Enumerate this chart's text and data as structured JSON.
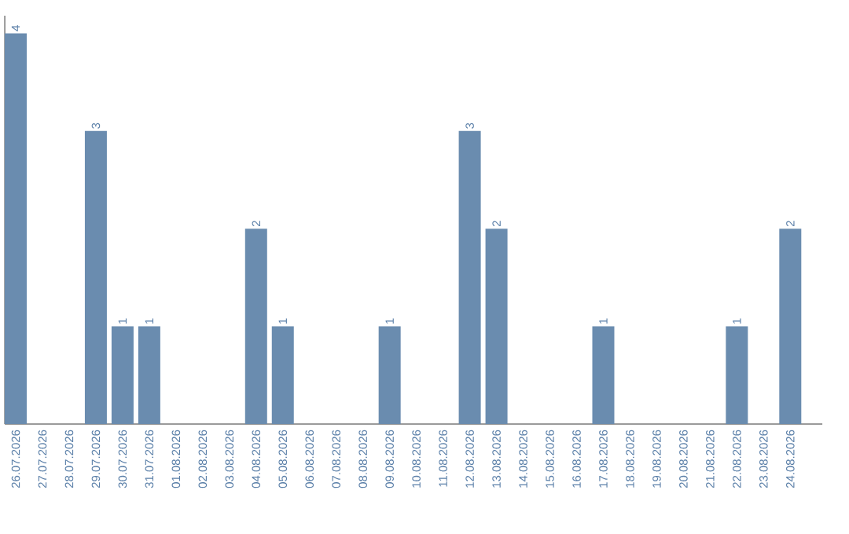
{
  "chart_data": {
    "type": "bar",
    "categories": [
      "26.07.2026",
      "27.07.2026",
      "28.07.2026",
      "29.07.2026",
      "30.07.2026",
      "31.07.2026",
      "01.08.2026",
      "02.08.2026",
      "03.08.2026",
      "04.08.2026",
      "05.08.2026",
      "06.08.2026",
      "07.08.2026",
      "08.08.2026",
      "09.08.2026",
      "10.08.2026",
      "11.08.2026",
      "12.08.2026",
      "13.08.2026",
      "14.08.2026",
      "15.08.2026",
      "16.08.2026",
      "17.08.2026",
      "18.08.2026",
      "19.08.2026",
      "20.08.2026",
      "21.08.2026",
      "22.08.2026",
      "23.08.2026",
      "24.08.2026"
    ],
    "values": [
      4,
      0,
      0,
      3,
      1,
      1,
      0,
      0,
      0,
      2,
      1,
      0,
      0,
      0,
      1,
      0,
      0,
      3,
      2,
      0,
      0,
      0,
      1,
      0,
      0,
      0,
      0,
      1,
      0,
      2
    ],
    "value_labels": [
      "4",
      null,
      null,
      "3",
      "1",
      "1",
      null,
      null,
      null,
      "2",
      "1",
      null,
      null,
      null,
      "1",
      null,
      null,
      "3",
      "2",
      null,
      null,
      null,
      "1",
      null,
      null,
      null,
      null,
      "1",
      null,
      "2"
    ],
    "color": "#6a8caf"
  }
}
